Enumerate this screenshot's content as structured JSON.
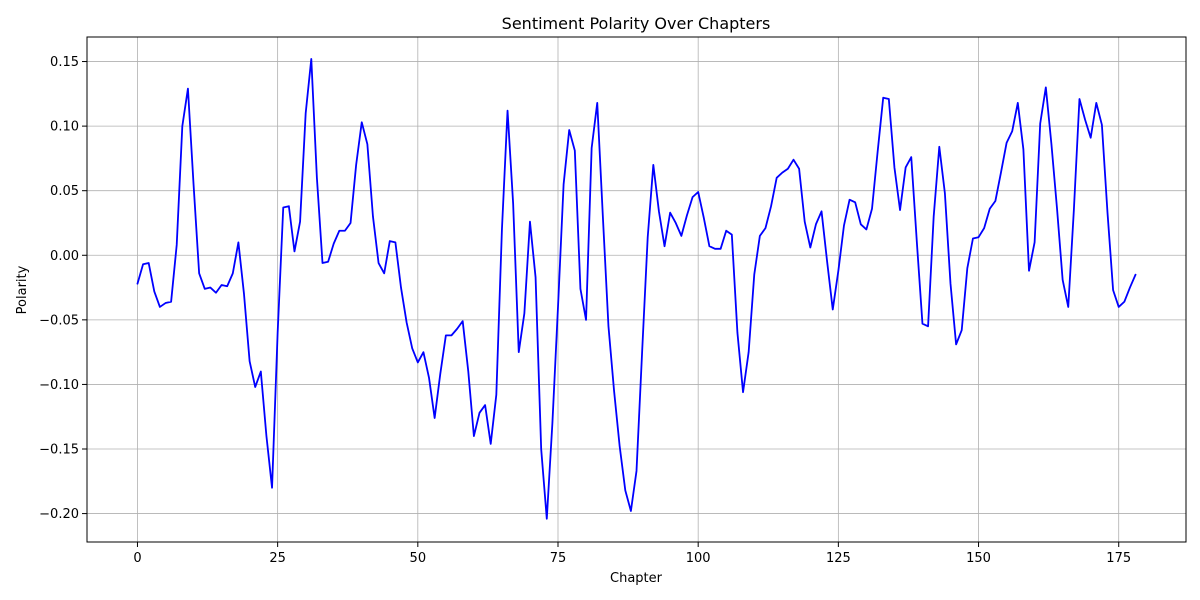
{
  "chart_data": {
    "type": "line",
    "title": "Sentiment Polarity Over Chapters",
    "xlabel": "Chapter",
    "ylabel": "Polarity",
    "xlim": [
      -9,
      187
    ],
    "ylim": [
      -0.222,
      0.169
    ],
    "xticks": [
      0,
      25,
      50,
      75,
      100,
      125,
      150,
      175
    ],
    "yticks": [
      -0.2,
      -0.15,
      -0.1,
      -0.05,
      0.0,
      0.05,
      0.1,
      0.15
    ],
    "ytick_labels": [
      "−0.20",
      "−0.15",
      "−0.10",
      "−0.05",
      "0.00",
      "0.05",
      "0.10",
      "0.15"
    ],
    "grid": true,
    "line_color": "#0000ff",
    "series": [
      {
        "x": [
          0,
          1,
          2,
          3,
          4,
          5,
          6,
          7,
          8,
          9,
          10,
          11,
          12,
          13,
          14,
          15,
          16,
          17,
          18,
          19,
          20,
          21,
          22,
          23,
          24,
          25,
          26,
          27,
          28,
          29,
          30,
          31,
          32,
          33,
          34,
          35,
          36,
          37,
          38,
          39,
          40,
          41,
          42,
          43,
          44,
          45,
          46,
          47,
          48,
          49,
          50,
          51,
          52,
          53,
          54,
          55,
          56,
          57,
          58,
          59,
          60,
          61,
          62,
          63,
          64,
          65,
          66,
          67,
          68,
          69,
          70,
          71,
          72,
          73,
          74,
          75,
          76,
          77,
          78,
          79,
          80,
          81,
          82,
          83,
          84,
          85,
          86,
          87,
          88,
          89,
          90,
          91,
          92,
          93,
          94,
          95,
          96,
          97,
          98,
          99,
          100,
          101,
          102,
          103,
          104,
          105,
          106,
          107,
          108,
          109,
          110,
          111,
          112,
          113,
          114,
          115,
          116,
          117,
          118,
          119,
          120,
          121,
          122,
          123,
          124,
          125,
          126,
          127,
          128,
          129,
          130,
          131,
          132,
          133,
          134,
          135,
          136,
          137,
          138,
          139,
          140,
          141,
          142,
          143,
          144,
          145,
          146,
          147,
          148,
          149,
          150,
          151,
          152,
          153,
          154,
          155,
          156,
          157,
          158,
          159,
          160,
          161,
          162,
          163,
          164,
          165,
          166,
          167,
          168,
          169,
          170,
          171,
          172,
          173,
          174,
          175,
          176,
          177,
          178
        ],
        "y": [
          -0.022,
          -0.007,
          -0.006,
          -0.028,
          -0.04,
          -0.037,
          -0.036,
          0.008,
          0.1,
          0.129,
          0.055,
          -0.014,
          -0.026,
          -0.025,
          -0.029,
          -0.023,
          -0.024,
          -0.014,
          0.01,
          -0.03,
          -0.082,
          -0.102,
          -0.09,
          -0.14,
          -0.18,
          -0.06,
          0.037,
          0.038,
          0.003,
          0.026,
          0.11,
          0.152,
          0.06,
          -0.006,
          -0.005,
          0.009,
          0.019,
          0.019,
          0.025,
          0.07,
          0.103,
          0.086,
          0.03,
          -0.006,
          -0.014,
          0.011,
          0.01,
          -0.025,
          -0.052,
          -0.072,
          -0.083,
          -0.075,
          -0.095,
          -0.126,
          -0.092,
          -0.062,
          -0.062,
          -0.057,
          -0.051,
          -0.09,
          -0.14,
          -0.122,
          -0.116,
          -0.146,
          -0.108,
          0.02,
          0.112,
          0.04,
          -0.075,
          -0.045,
          0.026,
          -0.017,
          -0.15,
          -0.204,
          -0.13,
          -0.04,
          0.055,
          0.097,
          0.081,
          -0.026,
          -0.05,
          0.083,
          0.118,
          0.03,
          -0.055,
          -0.105,
          -0.148,
          -0.182,
          -0.198,
          -0.167,
          -0.075,
          0.014,
          0.07,
          0.034,
          0.007,
          0.033,
          0.025,
          0.015,
          0.031,
          0.045,
          0.049,
          0.029,
          0.007,
          0.005,
          0.005,
          0.019,
          0.016,
          -0.06,
          -0.106,
          -0.075,
          -0.015,
          0.015,
          0.021,
          0.038,
          0.06,
          0.064,
          0.067,
          0.074,
          0.067,
          0.026,
          0.006,
          0.024,
          0.034,
          -0.005,
          -0.042,
          -0.012,
          0.023,
          0.043,
          0.041,
          0.024,
          0.02,
          0.036,
          0.08,
          0.122,
          0.121,
          0.068,
          0.035,
          0.068,
          0.076,
          0.01,
          -0.053,
          -0.055,
          0.03,
          0.084,
          0.048,
          -0.022,
          -0.069,
          -0.058,
          -0.01,
          0.013,
          0.014,
          0.021,
          0.036,
          0.042,
          0.064,
          0.087,
          0.096,
          0.118,
          0.082,
          -0.012,
          0.01,
          0.102,
          0.13,
          0.086,
          0.036,
          -0.019,
          -0.04,
          0.035,
          0.121,
          0.105,
          0.091,
          0.118,
          0.101,
          0.033,
          -0.027,
          -0.04,
          -0.036,
          -0.025,
          -0.015
        ]
      }
    ]
  }
}
